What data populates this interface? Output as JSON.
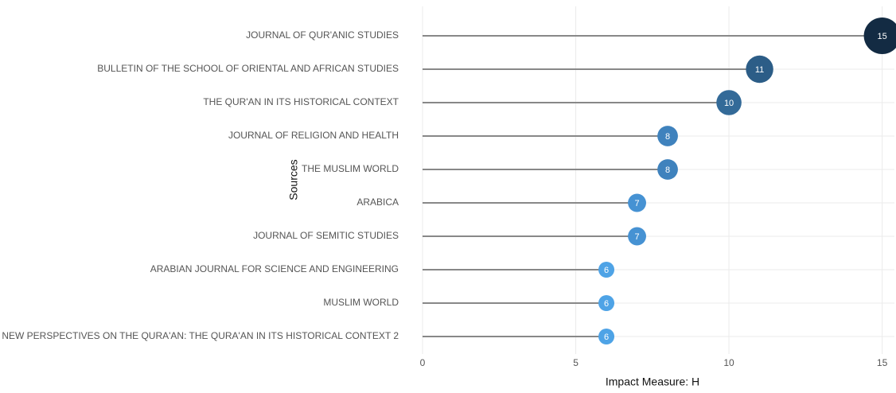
{
  "chart_data": {
    "type": "lollipop",
    "x_label": "Impact Measure: H",
    "y_label": "Sources",
    "categories": [
      "JOURNAL OF QUR'ANIC STUDIES",
      "BULLETIN OF THE SCHOOL OF ORIENTAL AND AFRICAN STUDIES",
      "THE QUR'AN IN ITS HISTORICAL CONTEXT",
      "JOURNAL OF RELIGION AND HEALTH",
      "THE MUSLIM WORLD",
      "ARABICA",
      "JOURNAL OF SEMITIC STUDIES",
      "ARABIAN JOURNAL FOR SCIENCE AND ENGINEERING",
      "MUSLIM WORLD",
      "NEW PERSPECTIVES ON THE QURA'AN: THE QURA'AN IN ITS HISTORICAL CONTEXT 2"
    ],
    "values": [
      15,
      11,
      10,
      8,
      8,
      7,
      7,
      6,
      6,
      6
    ],
    "colors": [
      "#132b43",
      "#2c5d87",
      "#336a98",
      "#3f82bd",
      "#3f82bd",
      "#4692d3",
      "#4692d3",
      "#4ea3e6",
      "#4ea3e6",
      "#4ea3e6"
    ],
    "xlim": [
      0,
      15.4
    ],
    "xticks": [
      0,
      5,
      10,
      15
    ],
    "grid": true
  }
}
